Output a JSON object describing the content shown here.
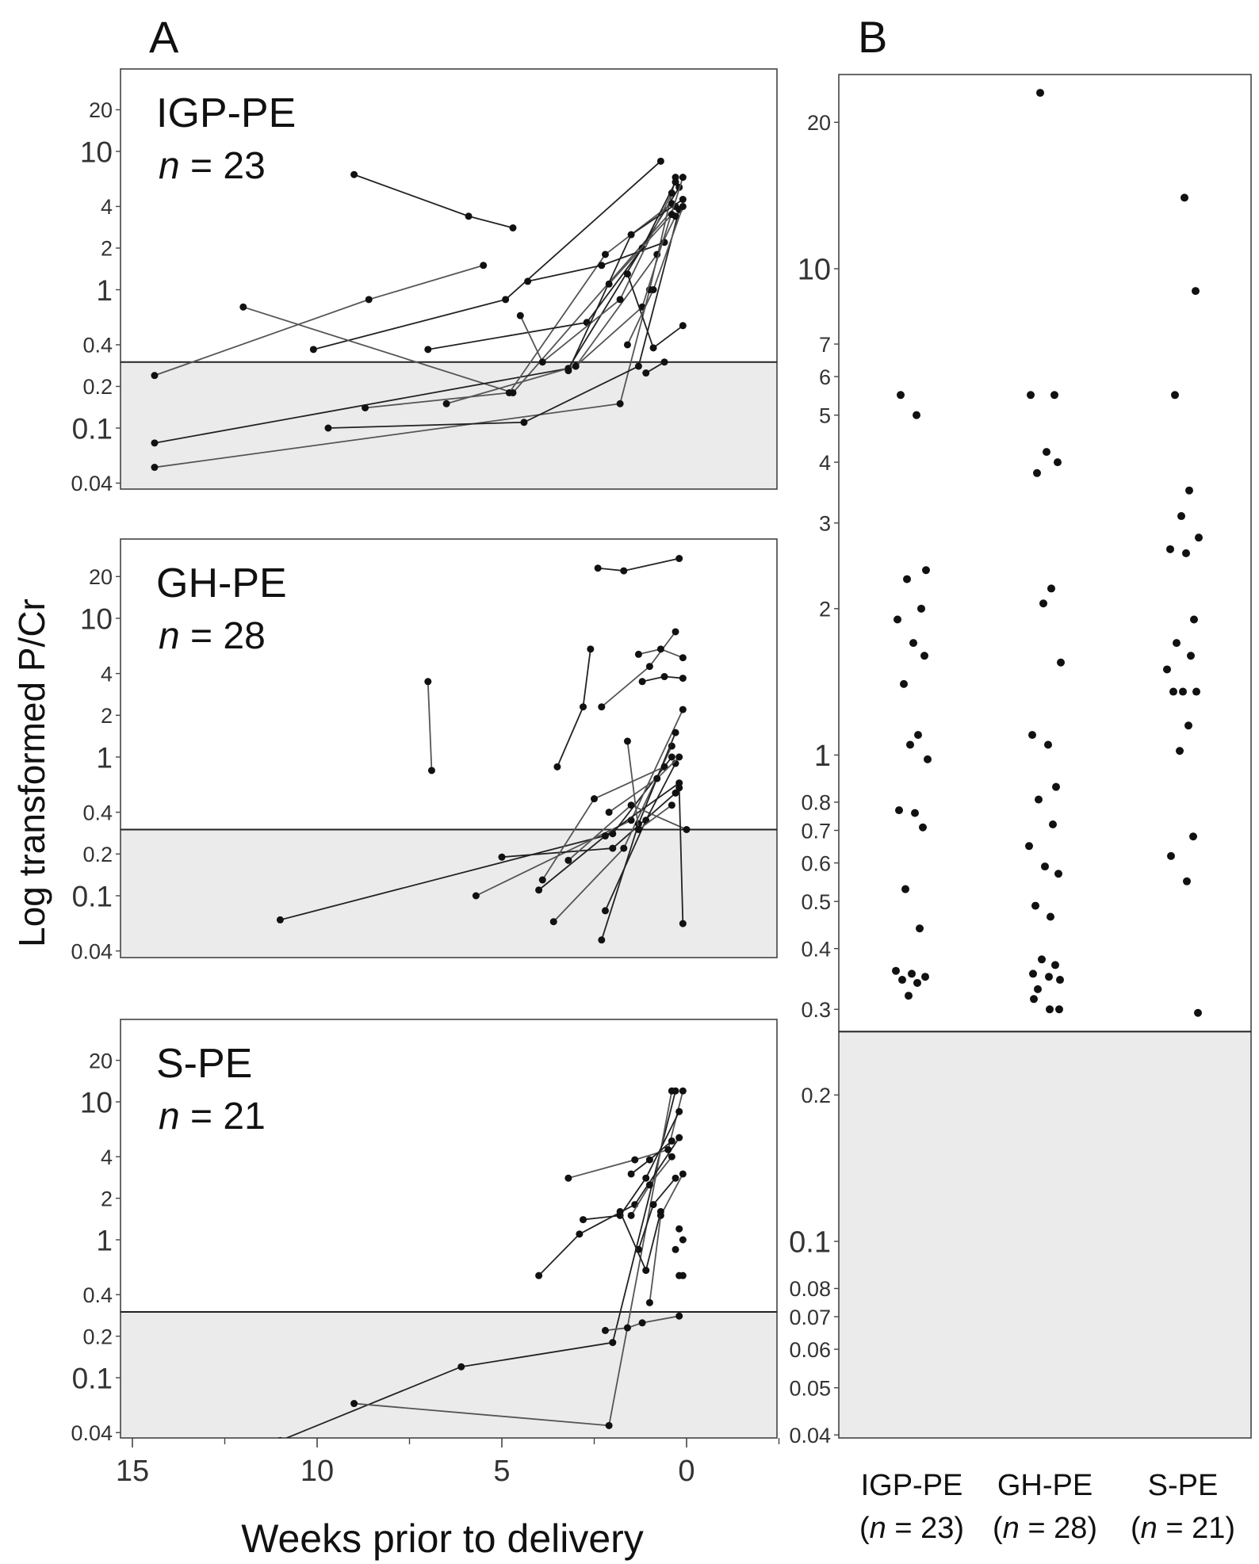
{
  "figure": {
    "panel_a_letter": "A",
    "panel_b_letter": "B",
    "y_axis_label": "Log transformed P/Cr",
    "x_axis_label": "Weeks prior to delivery",
    "x_ticks": [
      "15",
      "10",
      "5",
      "0"
    ]
  },
  "chart_data": [
    {
      "type": "line",
      "panel": "A",
      "group": "IGP-PE",
      "n_label": "n = 23",
      "x_reversed": true,
      "y_scale": "log",
      "y_ticks": [
        "20",
        "10",
        "4",
        "2",
        "1",
        "0.4",
        "0.2",
        "0.1",
        "0.04"
      ],
      "threshold": 0.3,
      "series": [
        {
          "points": [
            [
              9.0,
              6.8
            ],
            [
              5.9,
              3.4
            ],
            [
              4.7,
              2.8
            ]
          ]
        },
        {
          "points": [
            [
              14.4,
              0.24
            ],
            [
              8.6,
              0.85
            ],
            [
              5.5,
              1.5
            ]
          ]
        },
        {
          "points": [
            [
              10.1,
              0.37
            ],
            [
              4.9,
              0.85
            ],
            [
              0.7,
              8.5
            ]
          ]
        },
        {
          "points": [
            [
              12.0,
              0.75
            ],
            [
              4.7,
              0.18
            ],
            [
              0.3,
              4.0
            ]
          ]
        },
        {
          "points": [
            [
              14.4,
              0.078
            ],
            [
              3.2,
              0.27
            ],
            [
              0.2,
              5.5
            ]
          ]
        },
        {
          "points": [
            [
              14.4,
              0.052
            ],
            [
              1.8,
              0.15
            ],
            [
              1.0,
              1.0
            ],
            [
              0.3,
              6.5
            ]
          ]
        },
        {
          "points": [
            [
              9.7,
              0.1
            ],
            [
              4.4,
              0.11
            ],
            [
              1.3,
              0.28
            ],
            [
              0.2,
              3.8
            ]
          ]
        },
        {
          "points": [
            [
              8.7,
              0.14
            ],
            [
              4.8,
              0.18
            ],
            [
              2.2,
              1.8
            ],
            [
              0.4,
              4.2
            ]
          ]
        },
        {
          "points": [
            [
              7.0,
              0.37
            ],
            [
              2.7,
              0.58
            ],
            [
              1.2,
              2.0
            ],
            [
              0.3,
              6.0
            ]
          ]
        },
        {
          "points": [
            [
              6.5,
              0.15
            ],
            [
              3.0,
              0.28
            ],
            [
              0.8,
              1.8
            ],
            [
              0.3,
              3.4
            ]
          ]
        },
        {
          "points": [
            [
              4.3,
              1.15
            ],
            [
              2.3,
              1.5
            ],
            [
              0.6,
              2.2
            ]
          ]
        },
        {
          "points": [
            [
              4.5,
              0.65
            ],
            [
              3.9,
              0.3
            ],
            [
              1.8,
              0.85
            ],
            [
              0.4,
              5.0
            ]
          ]
        },
        {
          "points": [
            [
              3.2,
              0.26
            ],
            [
              1.5,
              2.5
            ],
            [
              0.1,
              4.5
            ]
          ]
        },
        {
          "points": [
            [
              3.0,
              0.28
            ],
            [
              1.2,
              0.75
            ],
            [
              0.1,
              6.5
            ]
          ]
        },
        {
          "points": [
            [
              1.6,
              1.3
            ],
            [
              0.9,
              0.38
            ],
            [
              0.1,
              0.55
            ]
          ]
        },
        {
          "points": [
            [
              1.6,
              0.4
            ],
            [
              0.9,
              1.0
            ],
            [
              0.1,
              4.0
            ]
          ]
        },
        {
          "points": [
            [
              1.1,
              0.25
            ],
            [
              0.6,
              0.3
            ]
          ]
        },
        {
          "points": [
            [
              2.1,
              1.1
            ],
            [
              0.4,
              3.5
            ]
          ]
        }
      ]
    },
    {
      "type": "line",
      "panel": "A",
      "group": "GH-PE",
      "n_label": "n = 28",
      "x_reversed": true,
      "y_scale": "log",
      "y_ticks": [
        "20",
        "10",
        "4",
        "2",
        "1",
        "0.4",
        "0.2",
        "0.1",
        "0.04"
      ],
      "threshold": 0.3,
      "series": [
        {
          "points": [
            [
              2.4,
              23.0
            ],
            [
              1.7,
              22.0
            ],
            [
              0.2,
              27.0
            ]
          ]
        },
        {
          "points": [
            [
              7.0,
              3.5
            ],
            [
              6.9,
              0.8
            ]
          ]
        },
        {
          "points": [
            [
              2.6,
              6.0
            ],
            [
              2.8,
              2.3
            ],
            [
              3.5,
              0.85
            ]
          ]
        },
        {
          "points": [
            [
              2.3,
              2.3
            ],
            [
              1.0,
              4.5
            ],
            [
              0.3,
              8.0
            ]
          ]
        },
        {
          "points": [
            [
              1.2,
              3.5
            ],
            [
              0.6,
              3.8
            ],
            [
              0.1,
              3.7
            ]
          ]
        },
        {
          "points": [
            [
              1.3,
              5.5
            ],
            [
              0.7,
              6.0
            ],
            [
              0.1,
              5.2
            ]
          ]
        },
        {
          "points": [
            [
              11.0,
              0.067
            ],
            [
              2.0,
              0.28
            ],
            [
              0.4,
              1.0
            ]
          ]
        },
        {
          "points": [
            [
              5.7,
              0.1
            ],
            [
              1.5,
              0.35
            ],
            [
              0.1,
              2.2
            ]
          ]
        },
        {
          "points": [
            [
              5.0,
              0.19
            ],
            [
              2.0,
              0.22
            ],
            [
              0.3,
              0.55
            ]
          ]
        },
        {
          "points": [
            [
              3.6,
              0.065
            ],
            [
              1.7,
              0.22
            ],
            [
              0.4,
              1.2
            ]
          ]
        },
        {
          "points": [
            [
              2.3,
              0.048
            ],
            [
              1.3,
              0.33
            ],
            [
              0.3,
              1.5
            ]
          ]
        },
        {
          "points": [
            [
              3.9,
              0.13
            ],
            [
              2.5,
              0.5
            ],
            [
              0.6,
              0.85
            ]
          ]
        },
        {
          "points": [
            [
              4.0,
              0.11
            ],
            [
              2.2,
              0.27
            ],
            [
              0.2,
              0.65
            ]
          ]
        },
        {
          "points": [
            [
              3.2,
              0.18
            ],
            [
              1.5,
              0.45
            ],
            [
              0.0,
              0.3
            ]
          ]
        },
        {
          "points": [
            [
              2.2,
              0.078
            ],
            [
              1.1,
              0.35
            ],
            [
              0.3,
              0.9
            ]
          ]
        },
        {
          "points": [
            [
              1.6,
              1.3
            ],
            [
              1.3,
              0.3
            ],
            [
              0.4,
              0.45
            ]
          ]
        },
        {
          "points": [
            [
              0.2,
              0.6
            ],
            [
              0.1,
              0.063
            ]
          ]
        },
        {
          "points": [
            [
              2.1,
              0.4
            ],
            [
              0.8,
              0.7
            ],
            [
              0.2,
              1.0
            ]
          ]
        }
      ]
    },
    {
      "type": "line",
      "panel": "A",
      "group": "S-PE",
      "n_label": "n = 21",
      "x_reversed": true,
      "y_scale": "log",
      "y_ticks": [
        "20",
        "10",
        "4",
        "2",
        "1",
        "0.4",
        "0.2",
        "0.1",
        "0.04"
      ],
      "threshold": 0.3,
      "series": [
        {
          "points": [
            [
              11.0,
              0.035
            ],
            [
              6.1,
              0.12
            ],
            [
              2.0,
              0.18
            ],
            [
              0.3,
              12.0
            ]
          ]
        },
        {
          "points": [
            [
              9.0,
              0.065
            ],
            [
              2.1,
              0.045
            ],
            [
              0.4,
              12.0
            ]
          ]
        },
        {
          "points": [
            [
              4.0,
              0.55
            ],
            [
              2.9,
              1.1
            ],
            [
              1.4,
              1.8
            ],
            [
              0.2,
              5.5
            ]
          ]
        },
        {
          "points": [
            [
              3.2,
              2.8
            ],
            [
              1.4,
              3.8
            ],
            [
              0.5,
              4.5
            ],
            [
              0.1,
              12.0
            ]
          ]
        },
        {
          "points": [
            [
              2.8,
              1.4
            ],
            [
              1.8,
              1.5
            ],
            [
              1.1,
              2.8
            ],
            [
              0.2,
              8.5
            ]
          ]
        },
        {
          "points": [
            [
              2.2,
              0.22
            ],
            [
              1.6,
              0.23
            ],
            [
              1.2,
              0.25
            ],
            [
              0.2,
              0.28
            ]
          ]
        },
        {
          "points": [
            [
              1.5,
              3.0
            ],
            [
              1.0,
              3.8
            ],
            [
              0.4,
              5.2
            ]
          ]
        },
        {
          "points": [
            [
              1.5,
              1.5
            ],
            [
              1.0,
              2.5
            ],
            [
              0.4,
              4.0
            ]
          ]
        },
        {
          "points": [
            [
              1.3,
              0.85
            ],
            [
              0.9,
              1.8
            ],
            [
              0.3,
              2.8
            ]
          ]
        },
        {
          "points": [
            [
              1.0,
              0.35
            ],
            [
              0.7,
              1.5
            ],
            [
              0.1,
              3.0
            ]
          ]
        },
        {
          "points": [
            [
              1.8,
              1.6
            ],
            [
              1.1,
              0.6
            ],
            [
              0.7,
              1.6
            ]
          ]
        }
      ],
      "isolated_points": [
        [
          0.2,
          0.55
        ],
        [
          0.1,
          0.55
        ],
        [
          0.2,
          1.2
        ],
        [
          0.1,
          1.0
        ],
        [
          0.3,
          0.85
        ]
      ]
    },
    {
      "type": "scatter",
      "panel": "B",
      "y_scale": "log",
      "y_ticks": [
        "20",
        "10",
        "7",
        "6",
        "5",
        "4",
        "3",
        "2",
        "1",
        "0.8",
        "0.7",
        "0.6",
        "0.5",
        "0.4",
        "0.3",
        "0.2",
        "0.1",
        "0.08",
        "0.07",
        "0.06",
        "0.05",
        "0.04"
      ],
      "threshold": 0.27,
      "categories": [
        "IGP-PE",
        "GH-PE",
        "S-PE"
      ],
      "category_n_labels": [
        "(n = 23)",
        "(n = 28)",
        "(n = 21)"
      ],
      "series": [
        {
          "category": "IGP-PE",
          "values": [
            5.5,
            5.0,
            2.4,
            2.3,
            2.0,
            1.9,
            1.7,
            1.6,
            1.4,
            1.1,
            1.05,
            0.98,
            0.77,
            0.76,
            0.71,
            0.53,
            0.44,
            0.36,
            0.355,
            0.35,
            0.345,
            0.34,
            0.32
          ]
        },
        {
          "category": "GH-PE",
          "values": [
            23.0,
            5.5,
            5.5,
            4.2,
            4.0,
            3.8,
            2.2,
            2.05,
            1.55,
            1.1,
            1.05,
            0.86,
            0.81,
            0.72,
            0.65,
            0.59,
            0.57,
            0.49,
            0.465,
            0.38,
            0.37,
            0.355,
            0.35,
            0.345,
            0.33,
            0.315,
            0.3,
            0.3
          ]
        },
        {
          "category": "S-PE",
          "values": [
            14.0,
            9.0,
            5.5,
            3.5,
            3.1,
            2.8,
            2.65,
            2.6,
            1.9,
            1.7,
            1.6,
            1.5,
            1.35,
            1.35,
            1.35,
            1.15,
            1.02,
            0.68,
            0.62,
            0.55,
            0.295
          ]
        }
      ]
    }
  ]
}
